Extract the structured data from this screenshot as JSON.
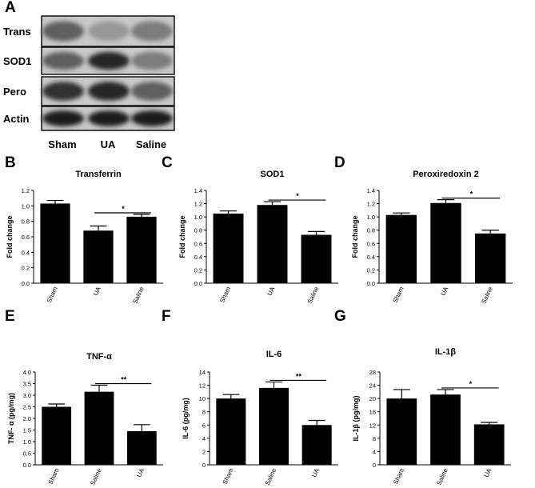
{
  "panel_letters": [
    "A",
    "B",
    "C",
    "D",
    "E",
    "F",
    "G"
  ],
  "western_blot": {
    "rows": [
      "Trans",
      "SOD1",
      "Pero",
      "Actin"
    ],
    "lanes": [
      "Sham",
      "UA",
      "Saline"
    ],
    "band_intensity": [
      [
        0.55,
        0.25,
        0.4
      ],
      [
        0.55,
        0.85,
        0.4
      ],
      [
        0.8,
        0.85,
        0.55
      ],
      [
        0.9,
        0.9,
        0.9
      ]
    ]
  },
  "chart_data": [
    {
      "type": "bar",
      "title": "Transferrin",
      "ylabel": "Fold change",
      "categories": [
        "Sham",
        "UA",
        "Saline"
      ],
      "values": [
        1.03,
        0.68,
        0.86
      ],
      "errors": [
        0.04,
        0.06,
        0.03
      ],
      "ylim": [
        0,
        1.2
      ],
      "yticks": [
        "0.0",
        "0.2",
        "0.4",
        "0.6",
        "0.8",
        "1.0",
        "1.2"
      ],
      "sig": {
        "from": 1,
        "to": 2,
        "label": "*"
      }
    },
    {
      "type": "bar",
      "title": "SOD1",
      "ylabel": "Fold change",
      "categories": [
        "Sham",
        "UA",
        "Saline"
      ],
      "values": [
        1.05,
        1.18,
        0.73
      ],
      "errors": [
        0.04,
        0.05,
        0.05
      ],
      "ylim": [
        0,
        1.4
      ],
      "yticks": [
        "0.0",
        "0.2",
        "0.4",
        "0.6",
        "0.8",
        "1.0",
        "1.2",
        "1.4"
      ],
      "sig": {
        "from": 1,
        "to": 2,
        "label": "*"
      }
    },
    {
      "type": "bar",
      "title": "Peroxiredoxin 2",
      "ylabel": "Fold change",
      "categories": [
        "Sham",
        "UA",
        "Saline"
      ],
      "values": [
        1.03,
        1.21,
        0.75
      ],
      "errors": [
        0.03,
        0.05,
        0.05
      ],
      "ylim": [
        0,
        1.4
      ],
      "yticks": [
        "0.0",
        "0.2",
        "0.4",
        "0.6",
        "0.8",
        "1.0",
        "1.2",
        "1.4"
      ],
      "sig": {
        "from": 1,
        "to": 2,
        "label": "*"
      }
    },
    {
      "type": "bar",
      "title": "TNF-α",
      "ylabel": "TNF- α  (pg/mg)",
      "categories": [
        "Sham",
        "Saline",
        "UA"
      ],
      "values": [
        2.5,
        3.15,
        1.45
      ],
      "errors": [
        0.12,
        0.28,
        0.28
      ],
      "ylim": [
        0,
        4.0
      ],
      "yticks": [
        "0.0",
        "0.5",
        "1.0",
        "1.5",
        "2.0",
        "2.5",
        "3.0",
        "3.5",
        "4.0"
      ],
      "sig": {
        "from": 1,
        "to": 2,
        "label": "**"
      }
    },
    {
      "type": "bar",
      "title": "IL-6",
      "ylabel": "IL-6 (pg/mg)",
      "categories": [
        "Sham",
        "Saline",
        "UA"
      ],
      "values": [
        10.0,
        11.6,
        6.0
      ],
      "errors": [
        0.6,
        0.9,
        0.7
      ],
      "ylim": [
        0,
        14
      ],
      "yticks": [
        "0",
        "2",
        "4",
        "6",
        "8",
        "10",
        "12",
        "14"
      ],
      "sig": {
        "from": 1,
        "to": 2,
        "label": "**"
      }
    },
    {
      "type": "bar",
      "title": "IL-1β",
      "ylabel": "IL-1β  (pg/mg)",
      "categories": [
        "Sham",
        "Saline",
        "UA"
      ],
      "values": [
        20.0,
        21.2,
        12.2
      ],
      "errors": [
        2.7,
        1.5,
        0.6
      ],
      "ylim": [
        0,
        28
      ],
      "yticks": [
        "0",
        "4",
        "8",
        "12",
        "16",
        "20",
        "24",
        "28"
      ],
      "sig": {
        "from": 1,
        "to": 2,
        "label": "*"
      }
    }
  ]
}
